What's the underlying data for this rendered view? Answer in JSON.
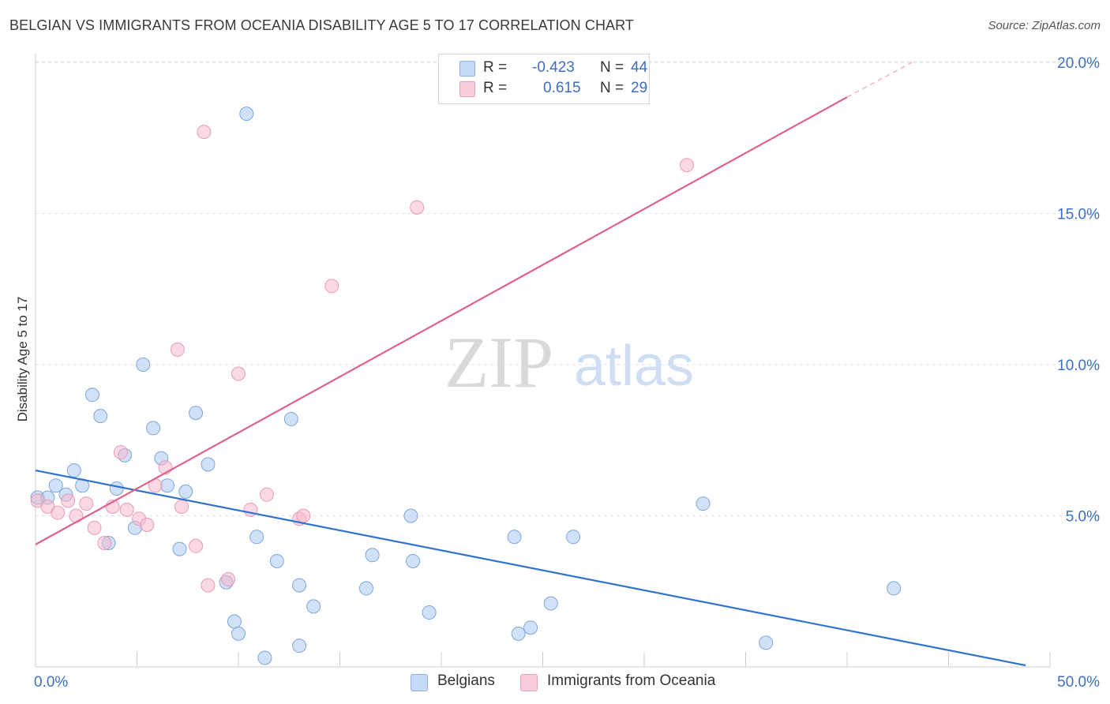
{
  "title": "BELGIAN VS IMMIGRANTS FROM OCEANIA DISABILITY AGE 5 TO 17 CORRELATION CHART",
  "source": "Source: ZipAtlas.com",
  "watermark": {
    "zip": "ZIP",
    "atlas": "atlas"
  },
  "legend": {
    "r_label": "R =",
    "n_label": "N =",
    "rows": [
      {
        "name": "Belgians",
        "r": "-0.423",
        "n": "44",
        "color": "#a9c8f2"
      },
      {
        "name": "Immigrants from Oceania",
        "r": "0.615",
        "n": "29",
        "color": "#f6b9cd"
      }
    ]
  },
  "chart_data": {
    "type": "scatter",
    "title": "BELGIAN VS IMMIGRANTS FROM OCEANIA DISABILITY AGE 5 TO 17 CORRELATION CHART",
    "xlabel": "",
    "ylabel": "Disability Age 5 to 17",
    "xlim": [
      0,
      50
    ],
    "ylim": [
      0,
      20.5
    ],
    "x_tick_labels": [
      "0.0%",
      "50.0%"
    ],
    "y_ticks": [
      5,
      10,
      15,
      20
    ],
    "y_tick_labels": [
      "5.0%",
      "10.0%",
      "15.0%",
      "20.0%"
    ],
    "grid": true,
    "series": [
      {
        "name": "Belgians",
        "color": "#a9c8f2",
        "stroke": "#7ea6dc",
        "line_color": "#2f73d1",
        "trend": {
          "x0": 0,
          "y0": 6.5,
          "x1": 48.8,
          "y1": 0.05
        },
        "points": [
          [
            0.1,
            5.6
          ],
          [
            0.6,
            5.6
          ],
          [
            1.0,
            6.0
          ],
          [
            1.5,
            5.7
          ],
          [
            1.9,
            6.5
          ],
          [
            2.3,
            6.0
          ],
          [
            2.8,
            9.0
          ],
          [
            3.2,
            8.3
          ],
          [
            3.6,
            4.1
          ],
          [
            4.0,
            5.9
          ],
          [
            4.4,
            7.0
          ],
          [
            4.9,
            4.6
          ],
          [
            5.3,
            10.0
          ],
          [
            5.8,
            7.9
          ],
          [
            6.2,
            6.9
          ],
          [
            6.5,
            6.0
          ],
          [
            7.1,
            3.9
          ],
          [
            7.4,
            5.8
          ],
          [
            7.9,
            8.4
          ],
          [
            8.5,
            6.7
          ],
          [
            9.4,
            2.8
          ],
          [
            9.8,
            1.5
          ],
          [
            10.0,
            1.1
          ],
          [
            10.4,
            18.3
          ],
          [
            10.9,
            4.3
          ],
          [
            11.3,
            0.3
          ],
          [
            11.9,
            3.5
          ],
          [
            12.6,
            8.2
          ],
          [
            13.0,
            2.7
          ],
          [
            13.0,
            0.7
          ],
          [
            13.7,
            2.0
          ],
          [
            16.3,
            2.6
          ],
          [
            16.6,
            3.7
          ],
          [
            18.5,
            5.0
          ],
          [
            18.6,
            3.5
          ],
          [
            19.4,
            1.8
          ],
          [
            23.6,
            4.3
          ],
          [
            23.8,
            1.1
          ],
          [
            24.4,
            1.3
          ],
          [
            25.4,
            2.1
          ],
          [
            26.5,
            4.3
          ],
          [
            32.9,
            5.4
          ],
          [
            36.0,
            0.8
          ],
          [
            42.3,
            2.6
          ]
        ]
      },
      {
        "name": "Immigrants from Oceania",
        "color": "#f6b9cd",
        "stroke": "#e79bb4",
        "line_color": "#e0618a",
        "trend": {
          "x0": 0,
          "y0": 4.05,
          "x1": 40.0,
          "y1": 18.85
        },
        "trend_dash": {
          "x0": 40.0,
          "y0": 18.85,
          "x1": 43.2,
          "y1": 20.0
        },
        "points": [
          [
            0.1,
            5.5
          ],
          [
            0.6,
            5.3
          ],
          [
            1.1,
            5.1
          ],
          [
            1.6,
            5.5
          ],
          [
            2.0,
            5.0
          ],
          [
            2.5,
            5.4
          ],
          [
            2.9,
            4.6
          ],
          [
            3.4,
            4.1
          ],
          [
            3.8,
            5.3
          ],
          [
            4.2,
            7.1
          ],
          [
            4.5,
            5.2
          ],
          [
            5.1,
            4.9
          ],
          [
            5.5,
            4.7
          ],
          [
            5.9,
            6.0
          ],
          [
            6.4,
            6.6
          ],
          [
            7.0,
            10.5
          ],
          [
            7.2,
            5.3
          ],
          [
            7.9,
            4.0
          ],
          [
            8.3,
            17.7
          ],
          [
            8.5,
            2.7
          ],
          [
            9.5,
            2.9
          ],
          [
            10.0,
            9.7
          ],
          [
            10.6,
            5.2
          ],
          [
            11.4,
            5.7
          ],
          [
            13.0,
            4.9
          ],
          [
            13.2,
            5.0
          ],
          [
            14.6,
            12.6
          ],
          [
            18.8,
            15.2
          ],
          [
            32.1,
            16.6
          ]
        ]
      }
    ]
  }
}
